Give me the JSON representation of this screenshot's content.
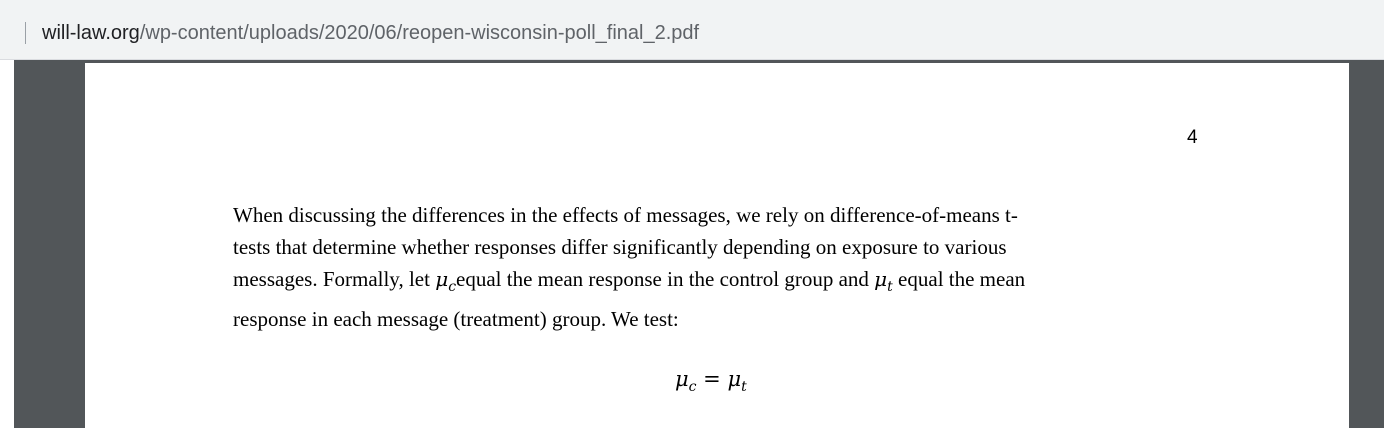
{
  "browser": {
    "url_domain": "will-law.org",
    "url_path": "/wp-content/uploads/2020/06/reopen-wisconsin-poll_final_2.pdf"
  },
  "document": {
    "page_number": "4",
    "paragraph": {
      "line1": "When discussing the differences in the effects of messages, we rely on difference-of-means t-",
      "line2": "tests that determine whether responses differ significantly depending on exposure to various",
      "line3_a": "messages.  Formally, let ",
      "mu_symbol": "μ",
      "sub_c": "c",
      "line3_b": "equal the mean response in the control group and ",
      "sub_t": "t",
      "line3_c": " equal the mean",
      "line4": "response in each message (treatment) group.  We test:"
    },
    "equation": {
      "lhs_symbol": "μ",
      "lhs_sub": "c",
      "operator": " = ",
      "rhs_symbol": "μ",
      "rhs_sub": "t"
    }
  }
}
